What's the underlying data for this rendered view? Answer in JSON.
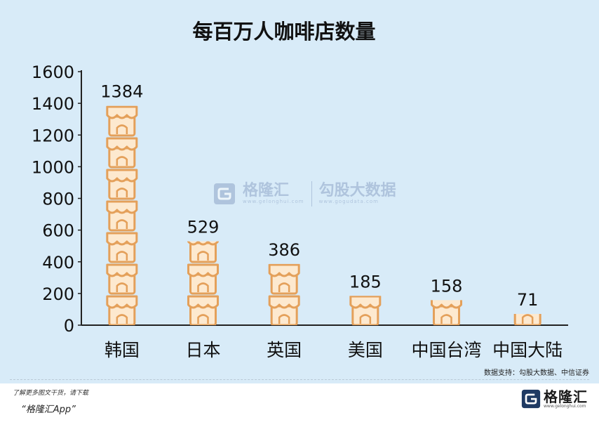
{
  "chart_data": {
    "type": "bar",
    "title": "每百万人咖啡店数量",
    "categories": [
      "韩国",
      "日本",
      "英国",
      "美国",
      "中国台湾",
      "中国大陆"
    ],
    "values": [
      1384,
      529,
      386,
      185,
      158,
      71
    ],
    "yticks": [
      "0",
      "200",
      "400",
      "600",
      "800",
      "1000",
      "1200",
      "1400",
      "1600"
    ],
    "ylim": [
      0,
      1600
    ],
    "grid": false,
    "bar_style": "stacked coffee-shop icons",
    "icon_color": "#e4a05a"
  },
  "source": "数据支持：勾股大数据、中信证券",
  "footer": {
    "line1": "了解更多图文干货，请下载",
    "line2": "“格隆汇App”"
  },
  "brand": {
    "logo_name": "格隆汇",
    "logo_url": "www.gelonghui.com",
    "watermark_name": "格隆汇",
    "watermark_url": "www.gelonghui.com",
    "watermark2_name": "勾股大数据",
    "watermark2_url": "www.gogudata.com"
  }
}
